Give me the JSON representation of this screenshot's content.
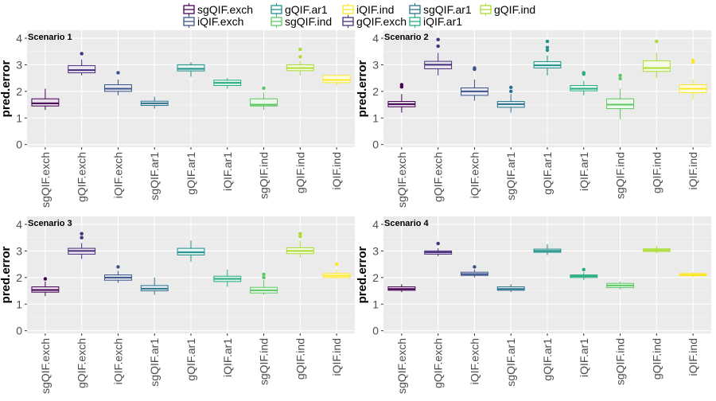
{
  "categories": [
    "sgQIF.exch",
    "gQIF.exch",
    "iQIF.exch",
    "sgQIF.ar1",
    "gQIF.ar1",
    "iQIF.ar1",
    "sgQIF.ind",
    "gQIF.ind",
    "iQIF.ind"
  ],
  "colors": [
    "#440154",
    "#472D7B",
    "#3B528B",
    "#2C728E",
    "#21908C",
    "#27AD81",
    "#5DC863",
    "#AADC32",
    "#FDE725"
  ],
  "chart_data": [
    {
      "type": "boxplot",
      "title": "Scenario 1",
      "ylabel": "pred.error",
      "ylim": [
        -0.1,
        4.3
      ],
      "yticks": [
        0,
        1,
        2,
        3,
        4
      ],
      "boxes": [
        {
          "min": 1.3,
          "q1": 1.45,
          "median": 1.55,
          "q3": 1.72,
          "max": 2.1,
          "outliers": []
        },
        {
          "min": 2.6,
          "q1": 2.7,
          "median": 2.8,
          "q3": 2.97,
          "max": 3.2,
          "outliers": [
            3.42
          ]
        },
        {
          "min": 1.85,
          "q1": 2.0,
          "median": 2.1,
          "q3": 2.25,
          "max": 2.45,
          "outliers": [
            2.7
          ]
        },
        {
          "min": 1.35,
          "q1": 1.47,
          "median": 1.55,
          "q3": 1.63,
          "max": 1.8,
          "outliers": []
        },
        {
          "min": 2.55,
          "q1": 2.77,
          "median": 2.85,
          "q3": 3.0,
          "max": 3.1,
          "outliers": []
        },
        {
          "min": 2.1,
          "q1": 2.22,
          "median": 2.32,
          "q3": 2.42,
          "max": 2.5,
          "outliers": []
        },
        {
          "min": 1.3,
          "q1": 1.45,
          "median": 1.5,
          "q3": 1.72,
          "max": 1.95,
          "outliers": [
            2.12
          ]
        },
        {
          "min": 2.6,
          "q1": 2.78,
          "median": 2.88,
          "q3": 3.0,
          "max": 3.15,
          "outliers": [
            3.3,
            3.58
          ]
        },
        {
          "min": 2.2,
          "q1": 2.33,
          "median": 2.43,
          "q3": 2.6,
          "max": 2.6,
          "outliers": []
        }
      ]
    },
    {
      "type": "boxplot",
      "title": "Scenario 2",
      "ylabel": "pred.error",
      "ylim": [
        -0.1,
        4.3
      ],
      "yticks": [
        0,
        1,
        2,
        3,
        4
      ],
      "boxes": [
        {
          "min": 1.2,
          "q1": 1.42,
          "median": 1.52,
          "q3": 1.62,
          "max": 1.9,
          "outliers": [
            2.17,
            2.25
          ]
        },
        {
          "min": 2.6,
          "q1": 2.85,
          "median": 3.0,
          "q3": 3.13,
          "max": 3.45,
          "outliers": [
            3.7,
            3.95
          ]
        },
        {
          "min": 1.65,
          "q1": 1.85,
          "median": 2.0,
          "q3": 2.13,
          "max": 2.45,
          "outliers": [
            2.83,
            2.88
          ]
        },
        {
          "min": 1.2,
          "q1": 1.4,
          "median": 1.52,
          "q3": 1.62,
          "max": 1.9,
          "outliers": [
            2.0,
            2.15
          ]
        },
        {
          "min": 2.6,
          "q1": 2.88,
          "median": 2.98,
          "q3": 3.12,
          "max": 3.35,
          "outliers": [
            3.55,
            3.65,
            3.88
          ]
        },
        {
          "min": 1.85,
          "q1": 2.02,
          "median": 2.1,
          "q3": 2.22,
          "max": 2.4,
          "outliers": [
            2.65,
            2.7
          ]
        },
        {
          "min": 0.95,
          "q1": 1.35,
          "median": 1.5,
          "q3": 1.72,
          "max": 2.1,
          "outliers": [
            2.48,
            2.6
          ]
        },
        {
          "min": 2.5,
          "q1": 2.75,
          "median": 2.88,
          "q3": 3.15,
          "max": 3.45,
          "outliers": [
            3.88
          ]
        },
        {
          "min": 1.7,
          "q1": 1.95,
          "median": 2.1,
          "q3": 2.25,
          "max": 2.45,
          "outliers": [
            3.1,
            3.17
          ]
        }
      ]
    },
    {
      "type": "boxplot",
      "title": "Scenario 3",
      "ylabel": "pred.error",
      "ylim": [
        -0.1,
        4.3
      ],
      "yticks": [
        0,
        1,
        2,
        3,
        4
      ],
      "boxes": [
        {
          "min": 1.3,
          "q1": 1.45,
          "median": 1.53,
          "q3": 1.65,
          "max": 1.85,
          "outliers": [
            1.95
          ]
        },
        {
          "min": 2.7,
          "q1": 2.88,
          "median": 3.0,
          "q3": 3.1,
          "max": 3.3,
          "outliers": [
            3.5,
            3.65
          ]
        },
        {
          "min": 1.8,
          "q1": 1.9,
          "median": 2.0,
          "q3": 2.1,
          "max": 2.25,
          "outliers": [
            2.4
          ]
        },
        {
          "min": 1.35,
          "q1": 1.5,
          "median": 1.58,
          "q3": 1.7,
          "max": 2.0,
          "outliers": []
        },
        {
          "min": 2.6,
          "q1": 2.85,
          "median": 2.95,
          "q3": 3.1,
          "max": 3.4,
          "outliers": []
        },
        {
          "min": 1.65,
          "q1": 1.85,
          "median": 1.95,
          "q3": 2.05,
          "max": 2.3,
          "outliers": []
        },
        {
          "min": 1.35,
          "q1": 1.42,
          "median": 1.52,
          "q3": 1.63,
          "max": 1.9,
          "outliers": [
            2.0,
            2.12
          ]
        },
        {
          "min": 2.75,
          "q1": 2.9,
          "median": 3.0,
          "q3": 3.12,
          "max": 3.4,
          "outliers": [
            3.55,
            3.65
          ]
        },
        {
          "min": 1.95,
          "q1": 2.0,
          "median": 2.07,
          "q3": 2.15,
          "max": 2.3,
          "outliers": [
            2.5
          ]
        }
      ]
    },
    {
      "type": "boxplot",
      "title": "Scenario 4",
      "ylabel": "pred.error",
      "ylim": [
        -0.1,
        4.3
      ],
      "yticks": [
        0,
        1,
        2,
        3,
        4
      ],
      "boxes": [
        {
          "min": 1.45,
          "q1": 1.52,
          "median": 1.57,
          "q3": 1.65,
          "max": 1.75,
          "outliers": []
        },
        {
          "min": 2.8,
          "q1": 2.88,
          "median": 2.95,
          "q3": 3.0,
          "max": 3.1,
          "outliers": [
            3.28
          ]
        },
        {
          "min": 2.0,
          "q1": 2.08,
          "median": 2.13,
          "q3": 2.2,
          "max": 2.3,
          "outliers": [
            2.4
          ]
        },
        {
          "min": 1.45,
          "q1": 1.52,
          "median": 1.57,
          "q3": 1.65,
          "max": 1.75,
          "outliers": []
        },
        {
          "min": 2.85,
          "q1": 2.95,
          "median": 3.0,
          "q3": 3.07,
          "max": 3.25,
          "outliers": []
        },
        {
          "min": 1.9,
          "q1": 2.0,
          "median": 2.05,
          "q3": 2.1,
          "max": 2.2,
          "outliers": [
            2.3
          ]
        },
        {
          "min": 1.55,
          "q1": 1.62,
          "median": 1.7,
          "q3": 1.78,
          "max": 1.85,
          "outliers": []
        },
        {
          "min": 2.9,
          "q1": 2.98,
          "median": 3.03,
          "q3": 3.08,
          "max": 3.2,
          "outliers": []
        },
        {
          "min": 2.0,
          "q1": 2.07,
          "median": 2.1,
          "q3": 2.15,
          "max": 2.2,
          "outliers": []
        }
      ]
    }
  ]
}
